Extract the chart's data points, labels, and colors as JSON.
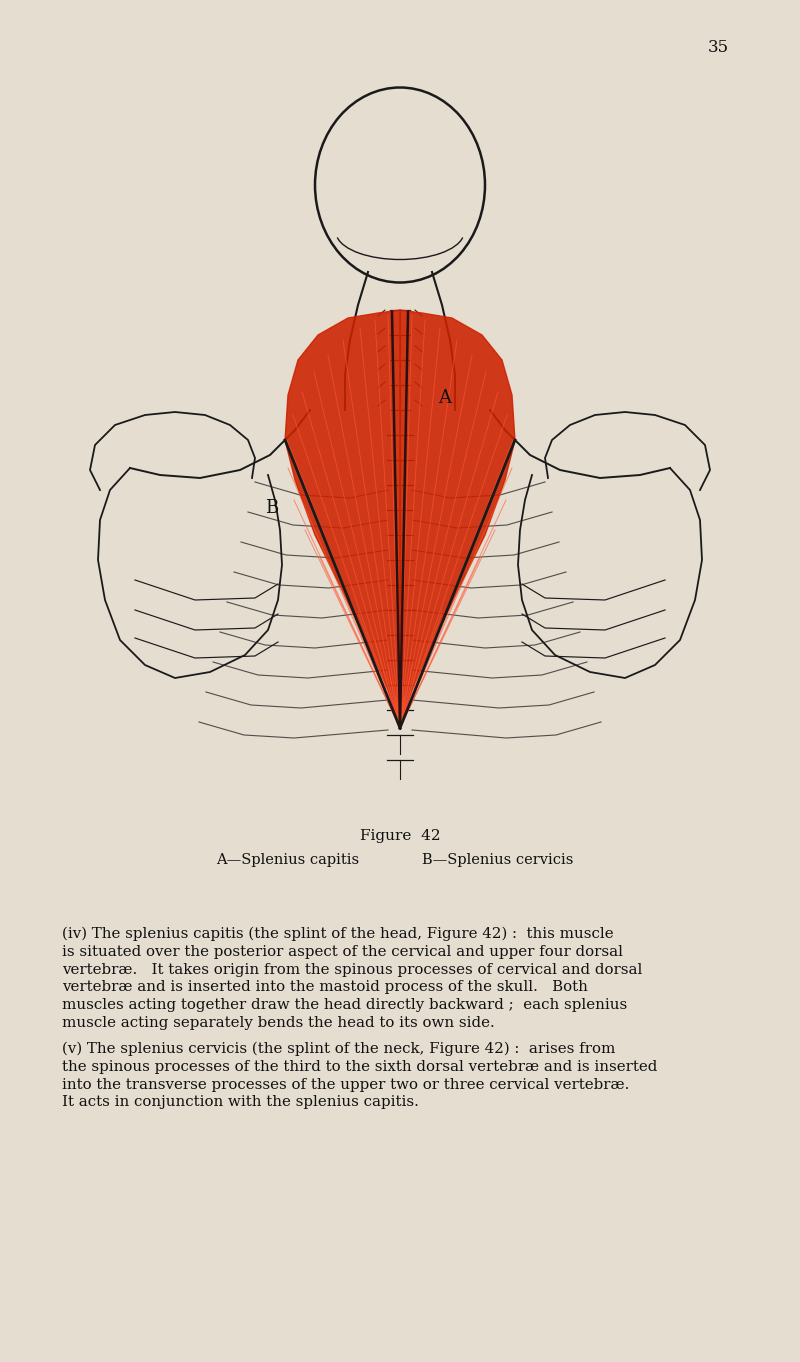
{
  "background_color": "#E5DDD0",
  "page_number": "35",
  "figure_caption": "Figure  42",
  "figure_subcaption_A": "A—Splenius capitis",
  "figure_subcaption_B": "B—Splenius cervicis",
  "body_text_1_prefix": "(iv) The ",
  "body_text_1_italic": "splenius capitis",
  "body_text_1_suffix": " (the splint of the head, Figure 42) :  this muscle\nis situated over the posterior aspect of the cervical and upper four dorsal\nvertebræ.   It takes origin from the spinous processes of cervical and dorsal\nvertebræ and is inserted into the mastoid process of the skull.   Both\nmuscles acting together draw the head directly backward ;  each splenius\nmuscle acting separately bends the head to its own side.",
  "body_text_2_prefix": "(v) The ",
  "body_text_2_italic": "splenius cervicis",
  "body_text_2_suffix": " (the splint of the neck, Figure 42) :  arises from\nthe spinous processes of the third to the sixth dorsal vertebræ and is inserted\ninto the transverse processes of the upper two or three cervical vertebræ.\nIt acts in conjunction with the splenius capitis.",
  "label_A": "A",
  "label_B": "B",
  "muscle_color": "#CC2200",
  "line_color": "#1a1a1a",
  "text_color": "#111111",
  "muscle_fill_color": "#DD3311"
}
